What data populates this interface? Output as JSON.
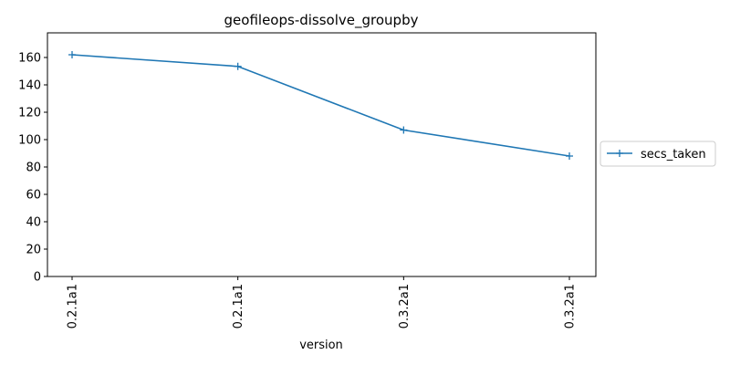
{
  "chart_data": {
    "type": "line",
    "title": "geofileops-dissolve_groupby",
    "xlabel": "version",
    "ylabel": "",
    "categories": [
      "0.2.1a1",
      "0.2.1a1",
      "0.3.2a1",
      "0.3.2a1"
    ],
    "series": [
      {
        "name": "secs_taken",
        "values": [
          162,
          153.5,
          107,
          88
        ],
        "color": "#1f77b4",
        "marker": "plus"
      }
    ],
    "ylim": [
      0,
      178
    ],
    "yticks": [
      0,
      20,
      40,
      60,
      80,
      100,
      120,
      140,
      160
    ],
    "grid": false,
    "legend": "outside-right"
  }
}
